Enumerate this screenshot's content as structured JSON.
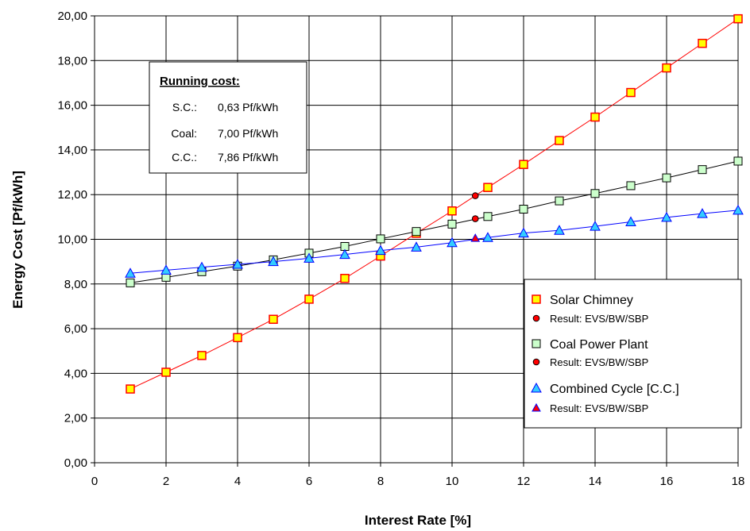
{
  "chart_data": {
    "type": "line",
    "xlabel": "Interest Rate  [%]",
    "ylabel": "Energy Cost [Pf/kWh]",
    "xlim": [
      0,
      18
    ],
    "ylim": [
      0,
      20
    ],
    "xticks": [
      "0",
      "2",
      "4",
      "6",
      "8",
      "10",
      "12",
      "14",
      "16",
      "18"
    ],
    "yticks": [
      "0,00",
      "2,00",
      "4,00",
      "6,00",
      "8,00",
      "10,00",
      "12,00",
      "14,00",
      "16,00",
      "18,00",
      "20,00"
    ],
    "grid": true,
    "legend_position": "bottom-right",
    "series": [
      {
        "name": "Solar Chimney",
        "marker": "square",
        "color": "#ff0000",
        "marker_fill": "#ffff00",
        "x": [
          1,
          2,
          3,
          4,
          5,
          6,
          7,
          8,
          9,
          10,
          11,
          12,
          13,
          14,
          15,
          16,
          17,
          18
        ],
        "y": [
          3.3,
          4.05,
          4.8,
          5.6,
          6.42,
          7.32,
          8.25,
          9.25,
          10.27,
          11.27,
          12.32,
          13.35,
          14.42,
          15.47,
          16.57,
          17.67,
          18.77,
          19.87
        ]
      },
      {
        "name": "Result: EVS/BW/SBP",
        "marker": "circle",
        "color": "#ff0000",
        "x": [
          10.65
        ],
        "y": [
          11.95
        ]
      },
      {
        "name": "Coal Power Plant",
        "marker": "square",
        "color": "#000000",
        "marker_fill": "#ccffcc",
        "x": [
          1,
          2,
          3,
          4,
          5,
          6,
          7,
          8,
          9,
          10,
          11,
          12,
          13,
          14,
          15,
          16,
          17,
          18
        ],
        "y": [
          8.05,
          8.3,
          8.55,
          8.8,
          9.08,
          9.38,
          9.68,
          10.02,
          10.35,
          10.68,
          11.02,
          11.35,
          11.72,
          12.05,
          12.4,
          12.75,
          13.12,
          13.5
        ]
      },
      {
        "name": "Result: EVS/BW/SBP",
        "marker": "circle",
        "color": "#000000",
        "x": [
          10.65
        ],
        "y": [
          10.92
        ]
      },
      {
        "name": "Combined Cycle [C.C.]",
        "marker": "triangle",
        "color": "#0000ff",
        "marker_fill": "#33ccff",
        "x": [
          1,
          2,
          3,
          4,
          5,
          6,
          7,
          8,
          9,
          10,
          11,
          12,
          13,
          14,
          15,
          16,
          17,
          18
        ],
        "y": [
          8.48,
          8.62,
          8.75,
          8.88,
          9.0,
          9.15,
          9.32,
          9.5,
          9.65,
          9.85,
          10.08,
          10.28,
          10.4,
          10.58,
          10.78,
          10.98,
          11.15,
          11.3
        ]
      },
      {
        "name": "Result: EVS/BW/SBP",
        "marker": "triangle-small",
        "color": "#0000ff",
        "x": [
          10.65
        ],
        "y": [
          10.05
        ]
      }
    ],
    "annotations": {
      "title": "Running cost:",
      "rows": [
        {
          "label": "S.C.:",
          "value": "0,63 Pf/kWh"
        },
        {
          "label": "Coal:",
          "value": "7,00 Pf/kWh"
        },
        {
          "label": "C.C.:",
          "value": "7,86 Pf/kWh"
        }
      ]
    }
  }
}
